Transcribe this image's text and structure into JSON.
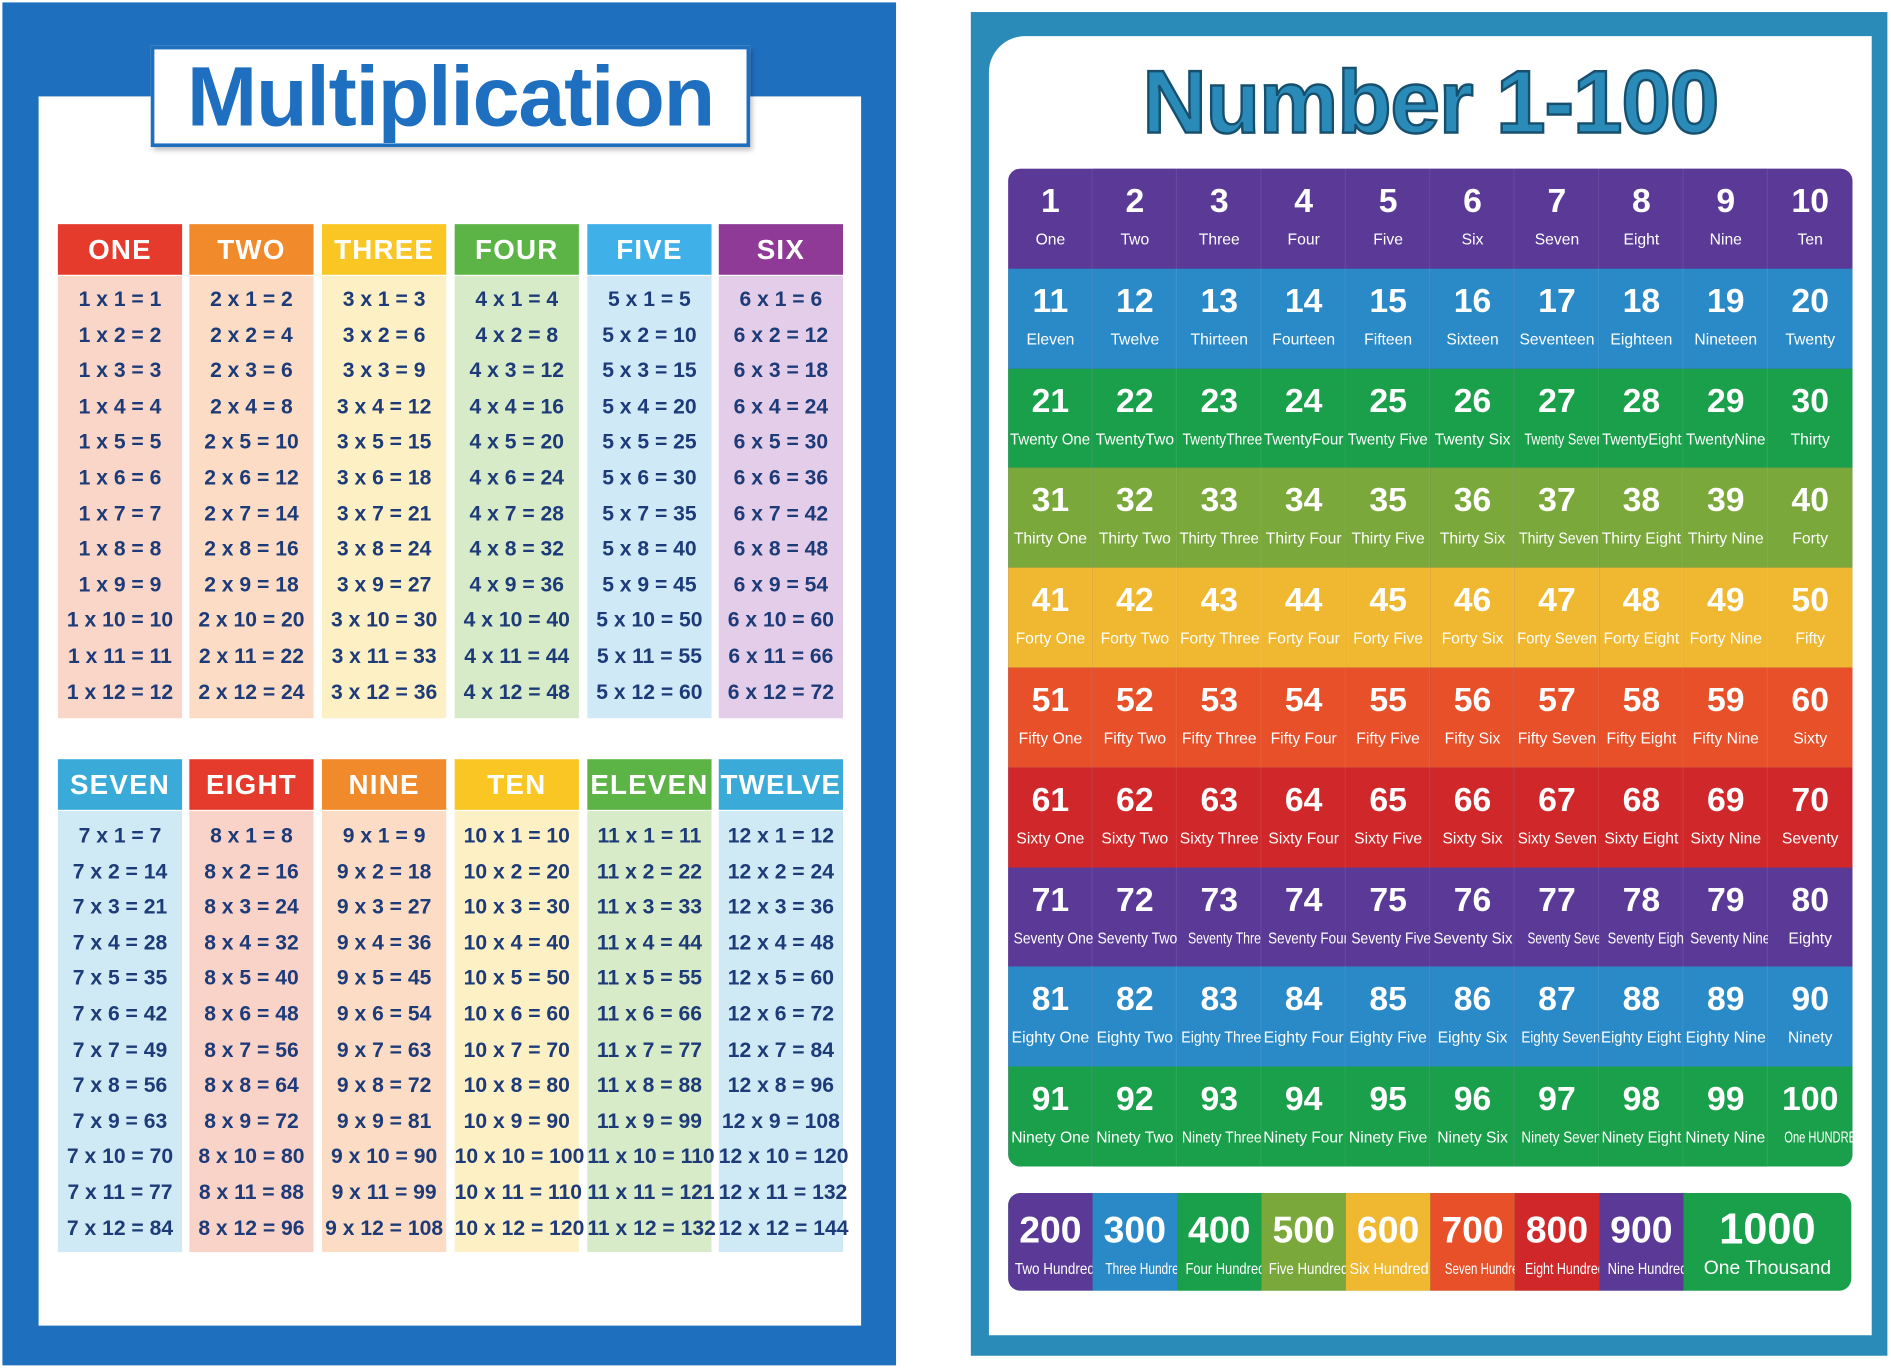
{
  "multiplication": {
    "title": "Multiplication",
    "tables": [
      {
        "header": "ONE",
        "rows": [
          "1 x 1 = 1",
          "1 x 2 = 2",
          "1 x 3 = 3",
          "1 x 4 = 4",
          "1 x 5 = 5",
          "1 x 6 = 6",
          "1 x 7 = 7",
          "1 x 8 = 8",
          "1 x 9 = 9",
          "1 x 10 = 10",
          "1 x 11 = 11",
          "1 x 12 = 12"
        ]
      },
      {
        "header": "TWO",
        "rows": [
          "2 x 1 = 2",
          "2 x 2 = 4",
          "2 x 3 = 6",
          "2 x 4 = 8",
          "2 x 5 = 10",
          "2 x 6 = 12",
          "2 x 7 = 14",
          "2 x 8 = 16",
          "2 x 9 = 18",
          "2 x 10 = 20",
          "2 x 11 = 22",
          "2 x 12 = 24"
        ]
      },
      {
        "header": "THREE",
        "rows": [
          "3 x 1 = 3",
          "3 x 2 = 6",
          "3 x 3 = 9",
          "3 x 4 = 12",
          "3 x 5 = 15",
          "3 x 6 = 18",
          "3 x 7 = 21",
          "3 x 8 = 24",
          "3 x 9 = 27",
          "3 x 10 = 30",
          "3 x 11 = 33",
          "3 x 12 = 36"
        ]
      },
      {
        "header": "FOUR",
        "rows": [
          "4 x 1 = 4",
          "4 x 2 = 8",
          "4 x 3 = 12",
          "4 x 4 = 16",
          "4 x 5 = 20",
          "4 x 6 = 24",
          "4 x 7 = 28",
          "4 x 8 = 32",
          "4 x 9 = 36",
          "4 x 10 = 40",
          "4 x 11 = 44",
          "4 x 12 = 48"
        ]
      },
      {
        "header": "FIVE",
        "rows": [
          "5 x 1 = 5",
          "5 x 2 = 10",
          "5 x 3 = 15",
          "5 x 4 = 20",
          "5 x 5 = 25",
          "5 x 6 = 30",
          "5 x 7 = 35",
          "5 x 8 = 40",
          "5 x 9 = 45",
          "5 x 10 = 50",
          "5 x 11 = 55",
          "5 x 12 = 60"
        ]
      },
      {
        "header": "SIX",
        "rows": [
          "6 x 1 = 6",
          "6 x 2 = 12",
          "6 x 3 = 18",
          "6 x 4 = 24",
          "6 x 5 = 30",
          "6 x 6 = 36",
          "6 x 7 = 42",
          "6 x 8 = 48",
          "6 x 9 = 54",
          "6 x 10 = 60",
          "6 x 11 = 66",
          "6 x 12 = 72"
        ]
      },
      {
        "header": "SEVEN",
        "rows": [
          "7 x 1 = 7",
          "7 x 2 = 14",
          "7 x 3 = 21",
          "7 x 4 = 28",
          "7 x 5 = 35",
          "7 x 6 = 42",
          "7 x 7 = 49",
          "7 x 8 = 56",
          "7 x 9 = 63",
          "7 x 10 = 70",
          "7 x 11 = 77",
          "7 x 12 = 84"
        ]
      },
      {
        "header": "EIGHT",
        "rows": [
          "8 x 1 = 8",
          "8 x 2 = 16",
          "8 x 3 = 24",
          "8 x 4 = 32",
          "8 x 5 = 40",
          "8 x 6 = 48",
          "8 x 7 = 56",
          "8 x 8 = 64",
          "8 x 9 = 72",
          "8 x 10 = 80",
          "8 x 11 = 88",
          "8 x 12 = 96"
        ]
      },
      {
        "header": "NINE",
        "rows": [
          "9 x 1 = 9",
          "9 x 2 = 18",
          "9 x 3 = 27",
          "9 x 4 = 36",
          "9 x 5 = 45",
          "9 x 6 = 54",
          "9 x 7 = 63",
          "9 x 8 = 72",
          "9 x 9 = 81",
          "9 x 10 = 90",
          "9 x 11 = 99",
          "9 x 12 = 108"
        ]
      },
      {
        "header": "TEN",
        "rows": [
          "10 x 1 = 10",
          "10 x 2 = 20",
          "10 x 3 = 30",
          "10 x 4 = 40",
          "10 x 5 = 50",
          "10 x 6 = 60",
          "10 x 7 = 70",
          "10 x 8 = 80",
          "10 x 9 = 90",
          "10 x 10 = 100",
          "10 x 11 = 110",
          "10 x 12 = 120"
        ]
      },
      {
        "header": "ELEVEN",
        "rows": [
          "11 x 1 = 11",
          "11 x 2 = 22",
          "11 x 3 = 33",
          "11 x 4 = 44",
          "11 x 5 = 55",
          "11 x 6 = 66",
          "11 x 7 = 77",
          "11 x 8 = 88",
          "11 x 9 = 99",
          "11 x 10 = 110",
          "11 x 11 = 121",
          "11 x 12 = 132"
        ]
      },
      {
        "header": "TWELVE",
        "rows": [
          "12 x 1 = 12",
          "12 x 2 = 24",
          "12 x 3 = 36",
          "12 x 4 = 48",
          "12 x 5 = 60",
          "12 x 6 = 72",
          "12 x 7 = 84",
          "12 x 8 = 96",
          "12 x 9 = 108",
          "12 x 10 = 120",
          "12 x 11 = 132",
          "12 x 12 = 144"
        ]
      }
    ]
  },
  "numbers": {
    "title": "Number 1-100",
    "cells": [
      {
        "number": 1,
        "word": "One"
      },
      {
        "number": 2,
        "word": "Two"
      },
      {
        "number": 3,
        "word": "Three"
      },
      {
        "number": 4,
        "word": "Four"
      },
      {
        "number": 5,
        "word": "Five"
      },
      {
        "number": 6,
        "word": "Six"
      },
      {
        "number": 7,
        "word": "Seven"
      },
      {
        "number": 8,
        "word": "Eight"
      },
      {
        "number": 9,
        "word": "Nine"
      },
      {
        "number": 10,
        "word": "Ten"
      },
      {
        "number": 11,
        "word": "Eleven"
      },
      {
        "number": 12,
        "word": "Twelve"
      },
      {
        "number": 13,
        "word": "Thirteen"
      },
      {
        "number": 14,
        "word": "Fourteen"
      },
      {
        "number": 15,
        "word": "Fifteen"
      },
      {
        "number": 16,
        "word": "Sixteen"
      },
      {
        "number": 17,
        "word": "Seventeen"
      },
      {
        "number": 18,
        "word": "Eighteen"
      },
      {
        "number": 19,
        "word": "Nineteen"
      },
      {
        "number": 20,
        "word": "Twenty"
      },
      {
        "number": 21,
        "word": "Twenty One"
      },
      {
        "number": 22,
        "word": "TwentyTwo"
      },
      {
        "number": 23,
        "word": "TwentyThree"
      },
      {
        "number": 24,
        "word": "TwentyFour"
      },
      {
        "number": 25,
        "word": "Twenty Five"
      },
      {
        "number": 26,
        "word": "Twenty Six"
      },
      {
        "number": 27,
        "word": "Twenty Seven"
      },
      {
        "number": 28,
        "word": "TwentyEight"
      },
      {
        "number": 29,
        "word": "TwentyNine"
      },
      {
        "number": 30,
        "word": "Thirty"
      },
      {
        "number": 31,
        "word": "Thirty One"
      },
      {
        "number": 32,
        "word": "Thirty Two"
      },
      {
        "number": 33,
        "word": "Thirty Three"
      },
      {
        "number": 34,
        "word": "Thirty Four"
      },
      {
        "number": 35,
        "word": "Thirty Five"
      },
      {
        "number": 36,
        "word": "Thirty Six"
      },
      {
        "number": 37,
        "word": "Thirty Seven"
      },
      {
        "number": 38,
        "word": "Thirty Eight"
      },
      {
        "number": 39,
        "word": "Thirty Nine"
      },
      {
        "number": 40,
        "word": "Forty"
      },
      {
        "number": 41,
        "word": "Forty One"
      },
      {
        "number": 42,
        "word": "Forty Two"
      },
      {
        "number": 43,
        "word": "Forty Three"
      },
      {
        "number": 44,
        "word": "Forty Four"
      },
      {
        "number": 45,
        "word": "Forty Five"
      },
      {
        "number": 46,
        "word": "Forty Six"
      },
      {
        "number": 47,
        "word": "Forty Seven"
      },
      {
        "number": 48,
        "word": "Forty Eight"
      },
      {
        "number": 49,
        "word": "Forty Nine"
      },
      {
        "number": 50,
        "word": "Fifty"
      },
      {
        "number": 51,
        "word": "Fifty One"
      },
      {
        "number": 52,
        "word": "Fifty Two"
      },
      {
        "number": 53,
        "word": "Fifty Three"
      },
      {
        "number": 54,
        "word": "Fifty Four"
      },
      {
        "number": 55,
        "word": "Fifty Five"
      },
      {
        "number": 56,
        "word": "Fifty Six"
      },
      {
        "number": 57,
        "word": "Fifty Seven"
      },
      {
        "number": 58,
        "word": "Fifty Eight"
      },
      {
        "number": 59,
        "word": "Fifty Nine"
      },
      {
        "number": 60,
        "word": "Sixty"
      },
      {
        "number": 61,
        "word": "Sixty One"
      },
      {
        "number": 62,
        "word": "Sixty Two"
      },
      {
        "number": 63,
        "word": "Sixty Three"
      },
      {
        "number": 64,
        "word": "Sixty Four"
      },
      {
        "number": 65,
        "word": "Sixty Five"
      },
      {
        "number": 66,
        "word": "Sixty Six"
      },
      {
        "number": 67,
        "word": "Sixty Seven"
      },
      {
        "number": 68,
        "word": "Sixty Eight"
      },
      {
        "number": 69,
        "word": "Sixty Nine"
      },
      {
        "number": 70,
        "word": "Seventy"
      },
      {
        "number": 71,
        "word": "Seventy One"
      },
      {
        "number": 72,
        "word": "Seventy Two"
      },
      {
        "number": 73,
        "word": "Seventy Three"
      },
      {
        "number": 74,
        "word": "Seventy Four"
      },
      {
        "number": 75,
        "word": "Seventy Five"
      },
      {
        "number": 76,
        "word": "Seventy Six"
      },
      {
        "number": 77,
        "word": "Seventy Seven"
      },
      {
        "number": 78,
        "word": "Seventy Eight"
      },
      {
        "number": 79,
        "word": "Seventy Nine"
      },
      {
        "number": 80,
        "word": "Eighty"
      },
      {
        "number": 81,
        "word": "Eighty One"
      },
      {
        "number": 82,
        "word": "Eighty Two"
      },
      {
        "number": 83,
        "word": "Eighty Three"
      },
      {
        "number": 84,
        "word": "Eighty Four"
      },
      {
        "number": 85,
        "word": "Eighty Five"
      },
      {
        "number": 86,
        "word": "Eighty Six"
      },
      {
        "number": 87,
        "word": "Eighty Seven"
      },
      {
        "number": 88,
        "word": "Eighty Eight"
      },
      {
        "number": 89,
        "word": "Eighty Nine"
      },
      {
        "number": 90,
        "word": "Ninety"
      },
      {
        "number": 91,
        "word": "Ninety One"
      },
      {
        "number": 92,
        "word": "Ninety Two"
      },
      {
        "number": 93,
        "word": "Ninety Three"
      },
      {
        "number": 94,
        "word": "Ninety Four"
      },
      {
        "number": 95,
        "word": "Ninety Five"
      },
      {
        "number": 96,
        "word": "Ninety Six"
      },
      {
        "number": 97,
        "word": "Ninety Seven"
      },
      {
        "number": 98,
        "word": "Ninety Eight"
      },
      {
        "number": 99,
        "word": "Ninety Nine"
      },
      {
        "number": 100,
        "word": "One HUNDRED"
      }
    ],
    "hundreds": [
      {
        "number": 200,
        "word": "Two Hundred"
      },
      {
        "number": 300,
        "word": "Three Hundred"
      },
      {
        "number": 400,
        "word": "Four Hundred"
      },
      {
        "number": 500,
        "word": "Five Hundred"
      },
      {
        "number": 600,
        "word": "Six Hundred"
      },
      {
        "number": 700,
        "word": "Seven Hundred"
      },
      {
        "number": 800,
        "word": "Eight Hundred"
      },
      {
        "number": 900,
        "word": "Nine Hundred"
      },
      {
        "number": 1000,
        "word": "One Thousand"
      }
    ]
  }
}
